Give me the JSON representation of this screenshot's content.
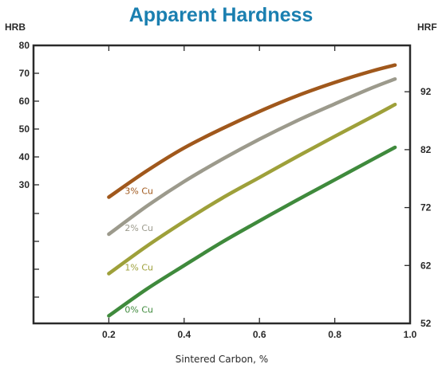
{
  "chart_data": {
    "type": "line",
    "title": "Apparent Hardness",
    "xlabel": "Sintered Carbon, %",
    "ylabel_left": "HRB",
    "ylabel_right": "HRF",
    "xlim": [
      0.0,
      1.0
    ],
    "xticks": [
      "0.2",
      "0.4",
      "0.6",
      "0.8",
      "1.0"
    ],
    "left_ticks": [
      "80",
      "70",
      "60",
      "50",
      "40",
      "30"
    ],
    "right_ticks": [
      "92",
      "82",
      "72",
      "62",
      "52"
    ],
    "right_ylim": [
      52,
      100
    ],
    "grid": false,
    "series": [
      {
        "name": "3% Cu",
        "color": "#a0581c",
        "x": [
          0.2,
          0.3,
          0.4,
          0.5,
          0.6,
          0.7,
          0.8,
          0.9,
          0.96
        ],
        "y": [
          73.8,
          78.3,
          82.3,
          85.6,
          88.6,
          91.3,
          93.6,
          95.6,
          96.6
        ]
      },
      {
        "name": "2% Cu",
        "color": "#9c9a8c",
        "x": [
          0.2,
          0.3,
          0.4,
          0.5,
          0.6,
          0.7,
          0.8,
          0.9,
          0.96
        ],
        "y": [
          67.4,
          72.2,
          76.5,
          80.3,
          83.8,
          87.0,
          89.9,
          92.7,
          94.2
        ]
      },
      {
        "name": "1% Cu",
        "color": "#9ea03a",
        "x": [
          0.2,
          0.3,
          0.4,
          0.5,
          0.6,
          0.7,
          0.8,
          0.9,
          0.96
        ],
        "y": [
          60.6,
          65.3,
          69.6,
          73.6,
          77.2,
          80.8,
          84.3,
          87.7,
          89.8
        ]
      },
      {
        "name": "0% Cu",
        "color": "#3f8a3c",
        "x": [
          0.2,
          0.3,
          0.4,
          0.5,
          0.6,
          0.7,
          0.8,
          0.9,
          0.96
        ],
        "y": [
          53.3,
          57.9,
          62.0,
          66.0,
          69.7,
          73.3,
          76.8,
          80.3,
          82.4
        ]
      }
    ]
  },
  "colors": {
    "title": "#1a7fb0",
    "axes": "#2a2a2a"
  }
}
